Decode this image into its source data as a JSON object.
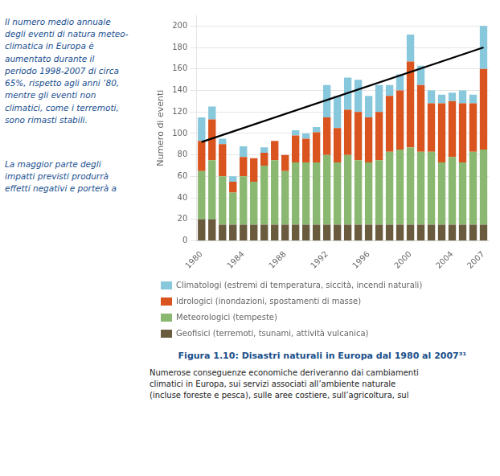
{
  "chart_data": {
    "type": "bar",
    "title": "Figura 1.10: Disastri naturali in Europa dal 1980 al 2007³¹",
    "ylabel": "Numero di eventi",
    "annotations": [
      "Il numero medio annuale\ndegli eventi di natura meteo-\nclimatica in Europa è\naumentato durante il\nperiodo 1998-2007 di circa\n65%, rispetto agli anni ‘80,\nmentre gli eventi non\nclimatici, come i terremoti,\nsono rimasti stabili.",
      "La maggior parte degli\nimpatti previsti produrrà\neffetti negativi e porterà a",
      "Numerose conseguenze economiche deriveranno dai cambiamenti\nclimatici in Europa, sui servizi associati all’ambiente naturale\n(incluse foreste e pesca), sulle aree costiere, sull’agricoltura, sul"
    ],
    "categories": [
      "1980",
      null,
      null,
      null,
      "1984",
      null,
      null,
      null,
      "1988",
      null,
      null,
      null,
      "1992",
      null,
      null,
      null,
      "1996",
      null,
      null,
      null,
      "2000",
      null,
      null,
      null,
      "2004",
      null,
      null,
      "2007"
    ],
    "series": [
      {
        "name": "Geofisici (terremoti, tsunami, attività vulcanica)",
        "type": "bar",
        "color": "#6B5B3E",
        "values": [
          20,
          20,
          15,
          15,
          15,
          15,
          15,
          15,
          15,
          15,
          15,
          15,
          15,
          15,
          15,
          15,
          15,
          15,
          15,
          15,
          15,
          15,
          15,
          15,
          15,
          15,
          15,
          15
        ]
      },
      {
        "name": "Meteorologici (tempeste)",
        "type": "bar",
        "color": "#8BB870",
        "values": [
          45,
          55,
          45,
          30,
          45,
          40,
          55,
          60,
          50,
          58,
          58,
          58,
          65,
          58,
          65,
          60,
          58,
          60,
          68,
          70,
          72,
          68,
          68,
          58,
          63,
          58,
          68,
          70
        ]
      },
      {
        "name": "Idrologici (inondazioni, spostamenti di masse)",
        "type": "bar",
        "color": "#D9541E",
        "values": [
          28,
          38,
          30,
          10,
          18,
          22,
          12,
          18,
          15,
          25,
          22,
          28,
          35,
          32,
          42,
          45,
          42,
          45,
          52,
          55,
          80,
          62,
          45,
          55,
          52,
          55,
          45,
          75
        ]
      },
      {
        "name": "Climatologi (estremi di temperatura, siccità, incendi naturali)",
        "type": "bar",
        "color": "#88C8DC",
        "values": [
          22,
          12,
          5,
          5,
          10,
          0,
          5,
          0,
          0,
          5,
          5,
          5,
          30,
          30,
          30,
          30,
          20,
          25,
          10,
          15,
          25,
          18,
          12,
          8,
          8,
          12,
          8,
          40
        ]
      },
      {
        "type": "line",
        "color": "#000000",
        "line_style": "solid",
        "values": [
          92,
          null,
          null,
          null,
          null,
          null,
          null,
          null,
          null,
          null,
          null,
          null,
          null,
          null,
          null,
          null,
          null,
          null,
          null,
          null,
          null,
          null,
          null,
          null,
          null,
          null,
          null,
          180
        ]
      }
    ],
    "stacked": true,
    "ylim": [
      0,
      210
    ],
    "yticks": [
      0,
      20,
      40,
      60,
      80,
      100,
      120,
      140,
      160,
      180,
      200
    ],
    "grid": true,
    "legend": "bottom"
  }
}
